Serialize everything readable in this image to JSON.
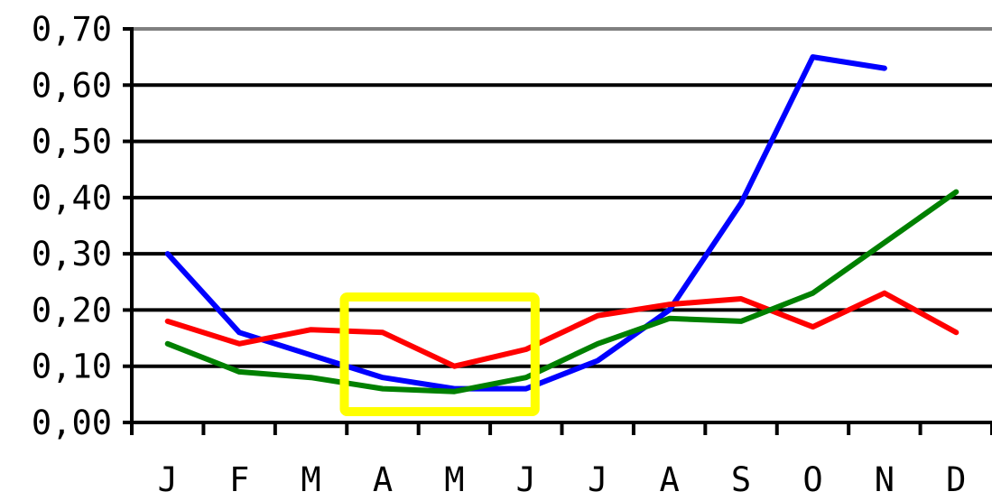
{
  "chart_data": {
    "type": "line",
    "title": "",
    "xlabel": "",
    "ylabel": "",
    "categories": [
      "J",
      "F",
      "M",
      "A",
      "M",
      "J",
      "J",
      "A",
      "S",
      "O",
      "N",
      "D"
    ],
    "ylim": [
      0,
      0.7
    ],
    "yticks": [
      "0,00",
      "0,10",
      "0,20",
      "0,30",
      "0,40",
      "0,50",
      "0,60",
      "0,70"
    ],
    "grid": true,
    "legend": "none",
    "series": [
      {
        "color": "#0000ff",
        "values": [
          0.3,
          0.16,
          0.12,
          0.08,
          0.06,
          0.06,
          0.11,
          0.2,
          0.39,
          0.65,
          0.63,
          null
        ]
      },
      {
        "color": "#ff0000",
        "values": [
          0.18,
          0.14,
          0.165,
          0.16,
          0.1,
          0.13,
          0.19,
          0.21,
          0.22,
          0.17,
          0.23,
          0.16
        ]
      },
      {
        "color": "#008000",
        "values": [
          0.14,
          0.09,
          0.08,
          0.06,
          0.055,
          0.08,
          0.14,
          0.185,
          0.18,
          0.23,
          0.32,
          0.41
        ]
      }
    ],
    "highlight": {
      "from_category": "A",
      "to_category": "J",
      "color": "#ffff00"
    }
  }
}
